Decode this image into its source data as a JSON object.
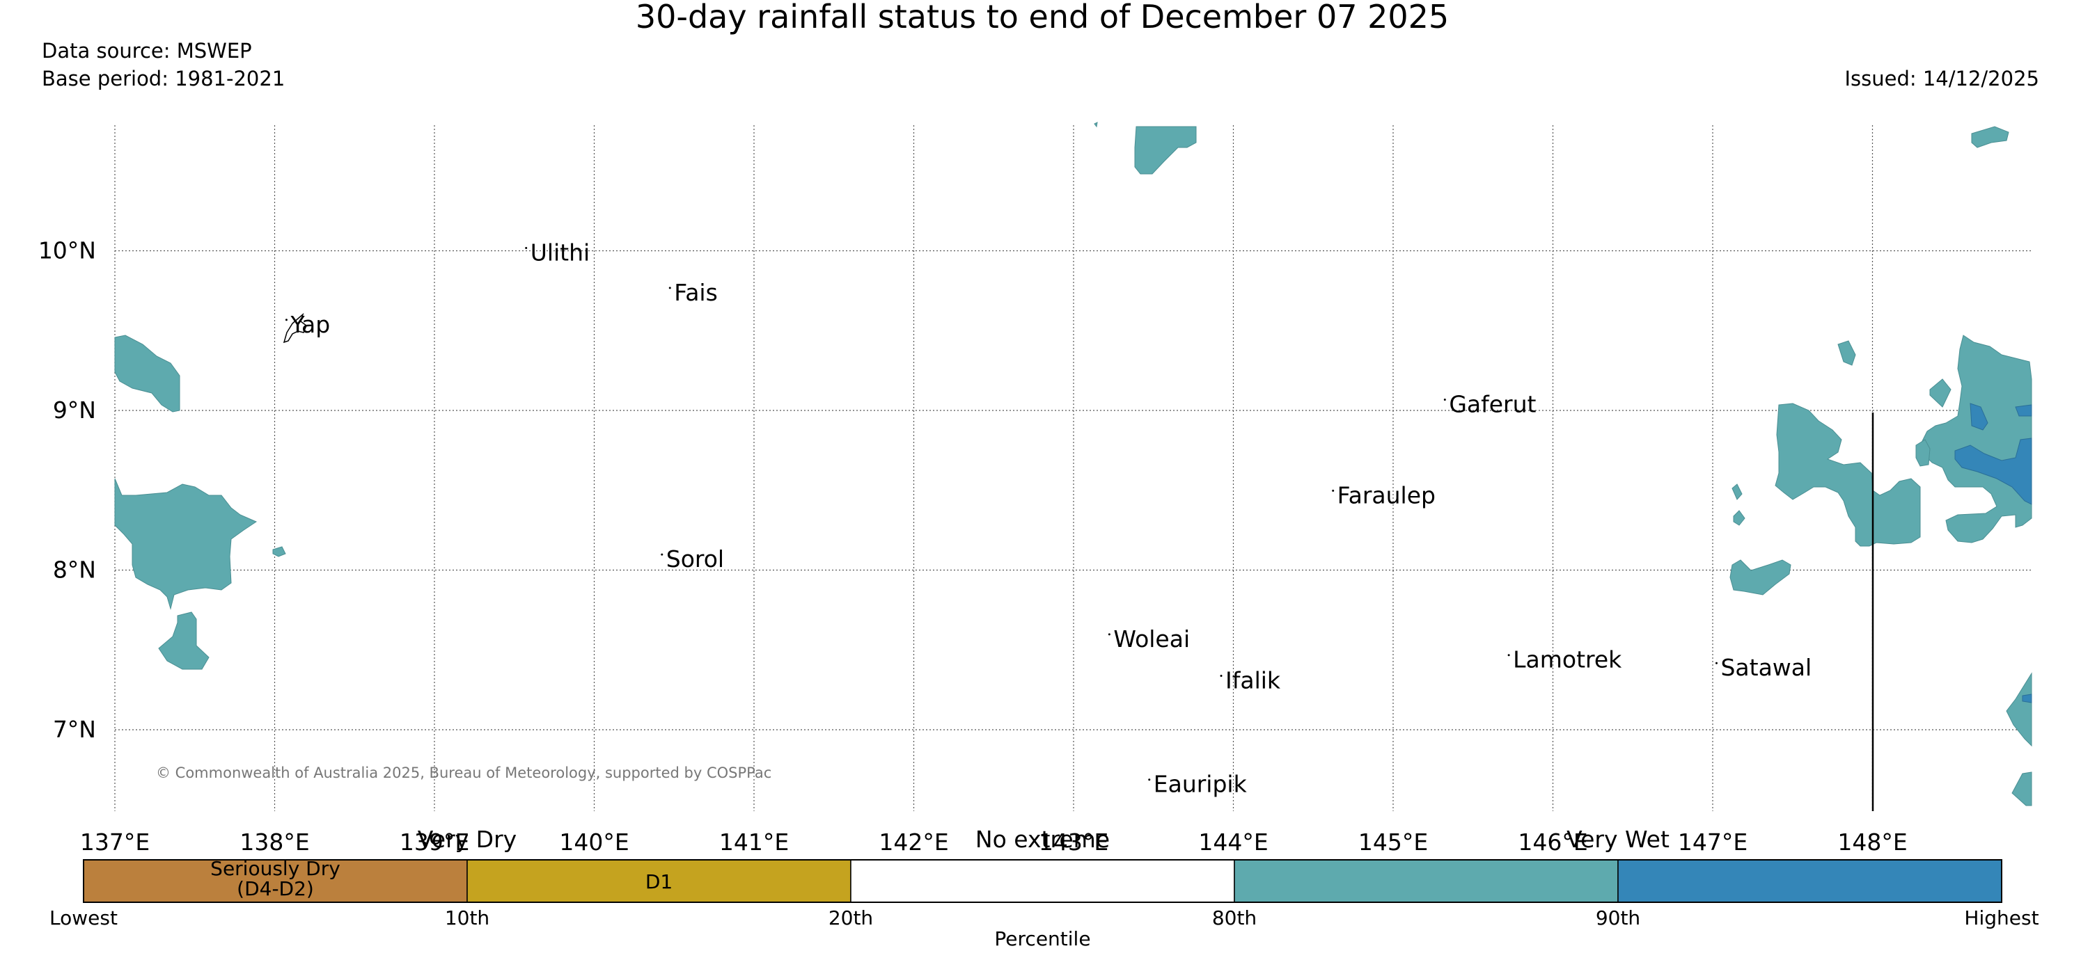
{
  "title": "30-day rainfall status to end of December 07 2025",
  "data_source": "Data source: MSWEP",
  "base_period": "Base period: 1981-2021",
  "issued": "Issued: 14/12/2025",
  "copyright": "© Commonwealth of Australia 2025, Bureau of Meteorology, supported by COSPPac",
  "map": {
    "lon_range": [
      137,
      149
    ],
    "lat_range": [
      6.5,
      10.8
    ],
    "lon_ticks": [
      {
        "lon": 137,
        "label": "137°E"
      },
      {
        "lon": 138,
        "label": "138°E"
      },
      {
        "lon": 139,
        "label": "139°E"
      },
      {
        "lon": 140,
        "label": "140°E"
      },
      {
        "lon": 141,
        "label": "141°E"
      },
      {
        "lon": 142,
        "label": "142°E"
      },
      {
        "lon": 143,
        "label": "143°E"
      },
      {
        "lon": 144,
        "label": "144°E"
      },
      {
        "lon": 145,
        "label": "145°E"
      },
      {
        "lon": 146,
        "label": "146°E"
      },
      {
        "lon": 147,
        "label": "147°E"
      },
      {
        "lon": 148,
        "label": "148°E"
      }
    ],
    "lat_ticks": [
      {
        "lat": 10,
        "label": "10°N"
      },
      {
        "lat": 9,
        "label": "9°N"
      },
      {
        "lat": 8,
        "label": "8°N"
      },
      {
        "lat": 7,
        "label": "7°N"
      }
    ],
    "places": [
      {
        "name": "Ulithi",
        "lon": 139.6,
        "lat": 10.0
      },
      {
        "name": "Fais",
        "lon": 140.5,
        "lat": 9.75
      },
      {
        "name": "Yap",
        "lon": 138.1,
        "lat": 9.55
      },
      {
        "name": "Gaferut",
        "lon": 145.35,
        "lat": 9.05
      },
      {
        "name": "Faraulep",
        "lon": 144.65,
        "lat": 8.48
      },
      {
        "name": "Sorol",
        "lon": 140.45,
        "lat": 8.08
      },
      {
        "name": "Woleai",
        "lon": 143.25,
        "lat": 7.58
      },
      {
        "name": "Lamotrek",
        "lon": 145.75,
        "lat": 7.45
      },
      {
        "name": "Satawal",
        "lon": 147.05,
        "lat": 7.4
      },
      {
        "name": "Ifalik",
        "lon": 143.95,
        "lat": 7.32
      },
      {
        "name": "Eauripik",
        "lon": 143.5,
        "lat": 6.67
      }
    ]
  },
  "legend": {
    "categories": [
      {
        "label": "Seriously Dry",
        "label2": "(D4-D2)",
        "color": "#bb803d"
      },
      {
        "label": "D1",
        "label2": "",
        "color": "#c5a31f"
      },
      {
        "label": "",
        "label2": "",
        "color": "#ffffff"
      },
      {
        "label": "",
        "label2": "",
        "color": "#5eaaae"
      },
      {
        "label": "",
        "label2": "",
        "color": "#3486b8"
      }
    ],
    "headings": [
      "Very Dry",
      "No extreme",
      "Very Wet"
    ],
    "ticks": [
      "Lowest",
      "10th",
      "20th",
      "80th",
      "90th",
      "Highest"
    ],
    "xlabel": "Percentile"
  },
  "colors": {
    "wet": "#5eaaae",
    "very_wet": "#3486b8"
  }
}
